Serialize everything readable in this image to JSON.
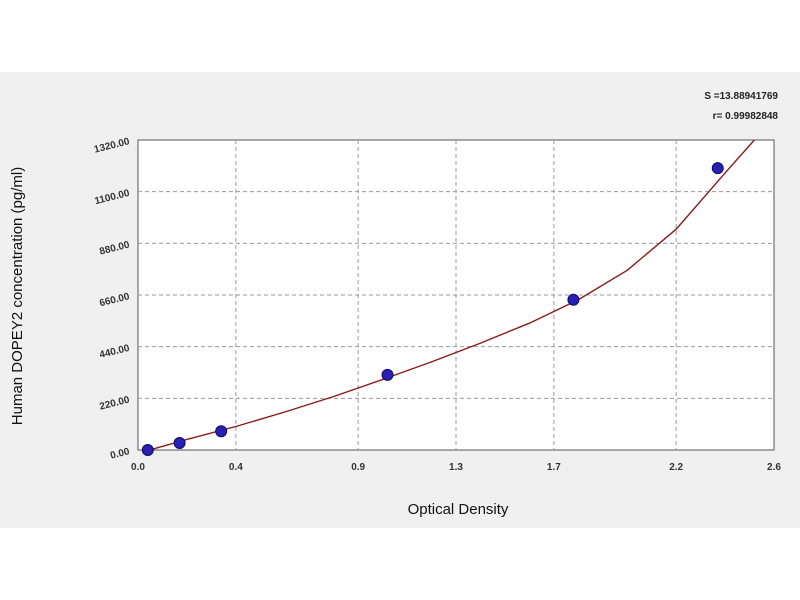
{
  "chart_data": {
    "type": "scatter",
    "title": "",
    "xlabel": "Optical Density",
    "ylabel": "Human DOPEY2 concentration (pg/ml)",
    "xlim": [
      0.0,
      2.6
    ],
    "ylim": [
      0,
      1320
    ],
    "x_ticks": [
      {
        "value": 0.0,
        "label": "0.0"
      },
      {
        "value": 0.4,
        "label": "0.4"
      },
      {
        "value": 0.9,
        "label": "0.9"
      },
      {
        "value": 1.3,
        "label": "1.3"
      },
      {
        "value": 1.7,
        "label": "1.7"
      },
      {
        "value": 2.2,
        "label": "2.2"
      },
      {
        "value": 2.6,
        "label": "2.6"
      }
    ],
    "y_ticks": [
      {
        "value": 0,
        "label": "0.00"
      },
      {
        "value": 220,
        "label": "220.00"
      },
      {
        "value": 440,
        "label": "440.00"
      },
      {
        "value": 660,
        "label": "660.00"
      },
      {
        "value": 880,
        "label": "880.00"
      },
      {
        "value": 1100,
        "label": "1100.00"
      },
      {
        "value": 1320,
        "label": "1320.00"
      }
    ],
    "grid": true,
    "series": [
      {
        "kind": "points",
        "color": "#2a1fb0",
        "points": [
          {
            "x": 0.04,
            "y": 0
          },
          {
            "x": 0.17,
            "y": 30
          },
          {
            "x": 0.34,
            "y": 80
          },
          {
            "x": 1.02,
            "y": 320
          },
          {
            "x": 1.78,
            "y": 640
          },
          {
            "x": 2.37,
            "y": 1200
          }
        ]
      },
      {
        "kind": "fit-curve",
        "color": "#8b1a1a",
        "points": [
          {
            "x": 0.02,
            "y": -8
          },
          {
            "x": 0.2,
            "y": 45
          },
          {
            "x": 0.4,
            "y": 100
          },
          {
            "x": 0.6,
            "y": 162
          },
          {
            "x": 0.8,
            "y": 228
          },
          {
            "x": 1.0,
            "y": 300
          },
          {
            "x": 1.2,
            "y": 375
          },
          {
            "x": 1.4,
            "y": 455
          },
          {
            "x": 1.6,
            "y": 540
          },
          {
            "x": 1.8,
            "y": 640
          },
          {
            "x": 2.0,
            "y": 765
          },
          {
            "x": 2.2,
            "y": 940
          },
          {
            "x": 2.4,
            "y": 1180
          },
          {
            "x": 2.52,
            "y": 1320
          }
        ]
      }
    ],
    "stats": [
      {
        "text": "S =13.88941769"
      },
      {
        "text": "r= 0.99982848"
      }
    ]
  },
  "colors": {
    "plot_background": "#ffffff",
    "frame_background": "#f0f0f0",
    "grid": "#9a9a9a",
    "axis": "#555555"
  }
}
